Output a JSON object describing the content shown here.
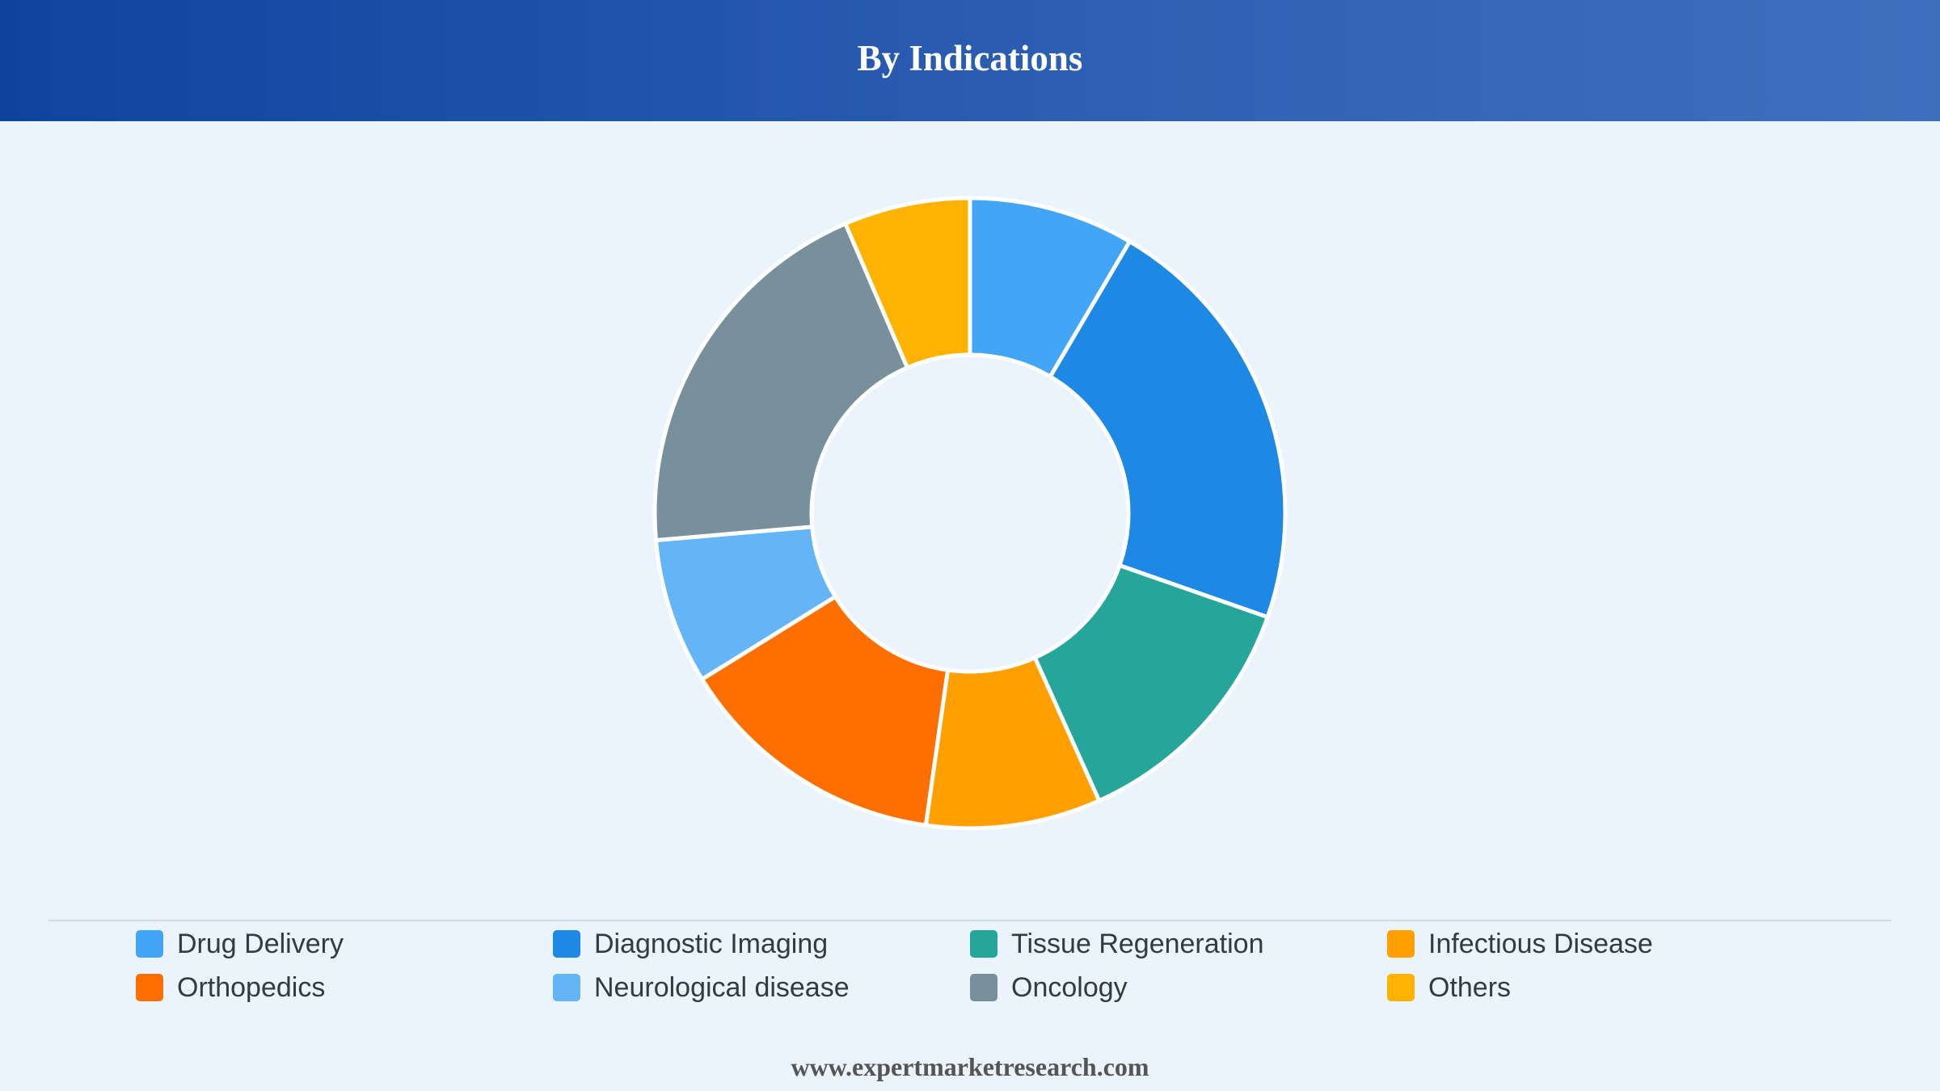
{
  "header": {
    "title": "By Indications"
  },
  "footer": {
    "text": "www.expertmarketresearch.com"
  },
  "chart_data": {
    "type": "pie",
    "variant": "donut",
    "title": "By Indications",
    "legend_position": "bottom",
    "series": [
      {
        "name": "Drug Delivery",
        "value": 8.5,
        "color": "#42a5f5"
      },
      {
        "name": "Diagnostic Imaging",
        "value": 22.0,
        "color": "#1e88e5"
      },
      {
        "name": "Tissue Regeneration",
        "value": 13.0,
        "color": "#26a69a"
      },
      {
        "name": "Infectious Disease",
        "value": 9.0,
        "color": "#ffa000"
      },
      {
        "name": "Orthopedics",
        "value": 14.0,
        "color": "#ff6f00"
      },
      {
        "name": "Neurological disease",
        "value": 7.5,
        "color": "#64b5f6"
      },
      {
        "name": "Oncology",
        "value": 20.0,
        "color": "#78909c"
      },
      {
        "name": "Others",
        "value": 6.5,
        "color": "#ffb300"
      }
    ]
  }
}
